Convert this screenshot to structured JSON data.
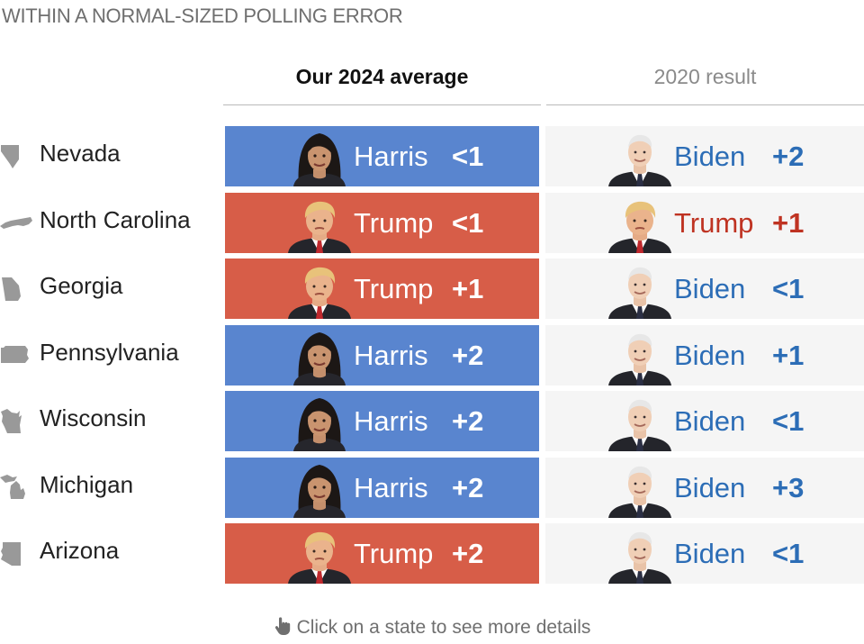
{
  "subtitle": "WITHIN A NORMAL-SIZED POLLING ERROR",
  "columns": {
    "avg_2024": "Our 2024 average",
    "result_2020": "2020 result"
  },
  "colors": {
    "dem": "#5985cf",
    "rep": "#d75d48",
    "dem_text": "#2c6db6",
    "rep_text": "#bf3322"
  },
  "rows": [
    {
      "state": "Nevada",
      "icon": "nevada-shape-icon",
      "avg": {
        "party": "dem",
        "candidate": "Harris",
        "margin": "<1"
      },
      "result": {
        "party": "dem",
        "candidate": "Biden",
        "margin": "+2"
      }
    },
    {
      "state": "North Carolina",
      "icon": "north-carolina-shape-icon",
      "avg": {
        "party": "rep",
        "candidate": "Trump",
        "margin": "<1"
      },
      "result": {
        "party": "rep",
        "candidate": "Trump",
        "margin": "+1"
      }
    },
    {
      "state": "Georgia",
      "icon": "georgia-shape-icon",
      "avg": {
        "party": "rep",
        "candidate": "Trump",
        "margin": "+1"
      },
      "result": {
        "party": "dem",
        "candidate": "Biden",
        "margin": "<1"
      }
    },
    {
      "state": "Pennsylvania",
      "icon": "pennsylvania-shape-icon",
      "avg": {
        "party": "dem",
        "candidate": "Harris",
        "margin": "+2"
      },
      "result": {
        "party": "dem",
        "candidate": "Biden",
        "margin": "+1"
      }
    },
    {
      "state": "Wisconsin",
      "icon": "wisconsin-shape-icon",
      "avg": {
        "party": "dem",
        "candidate": "Harris",
        "margin": "+2"
      },
      "result": {
        "party": "dem",
        "candidate": "Biden",
        "margin": "<1"
      }
    },
    {
      "state": "Michigan",
      "icon": "michigan-shape-icon",
      "avg": {
        "party": "dem",
        "candidate": "Harris",
        "margin": "+2"
      },
      "result": {
        "party": "dem",
        "candidate": "Biden",
        "margin": "+3"
      }
    },
    {
      "state": "Arizona",
      "icon": "arizona-shape-icon",
      "avg": {
        "party": "rep",
        "candidate": "Trump",
        "margin": "+2"
      },
      "result": {
        "party": "dem",
        "candidate": "Biden",
        "margin": "<1"
      }
    }
  ],
  "hint": {
    "text": "Click on a state to see more details",
    "icon": "hand-pointer-icon"
  }
}
